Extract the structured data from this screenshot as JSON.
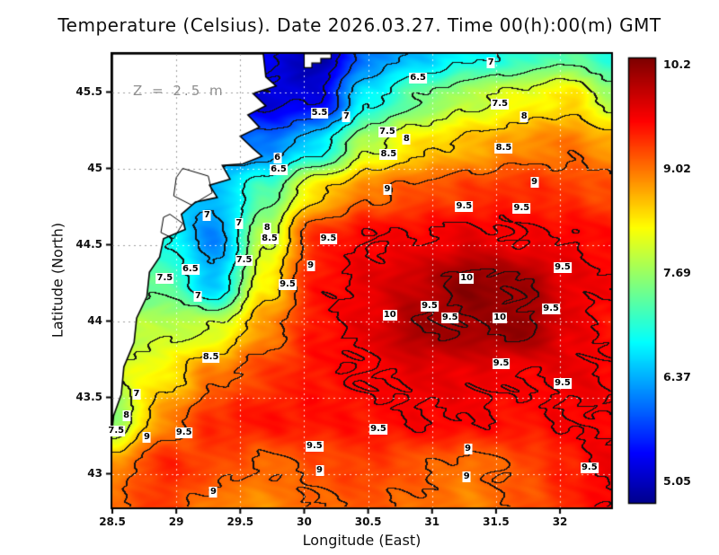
{
  "title": "Temperature (Celsius). Date 2026.03.27. Time 00(h):00(m) GMT",
  "annotation": "Z = 2.5 m",
  "axes": {
    "xlabel": "Longitude (East)",
    "ylabel": "Latitude (North)",
    "x_tick_labels": [
      "28.5",
      "29",
      "29.5",
      "30",
      "30.5",
      "31",
      "31.5",
      "32"
    ],
    "y_tick_labels": [
      "43",
      "43.5",
      "44",
      "44.5",
      "45",
      "45.5"
    ]
  },
  "colorbar": {
    "labels": [
      "10.2",
      "9.02",
      "7.69",
      "6.37",
      "5.05"
    ],
    "min": 5.05,
    "max": 10.2
  },
  "chart_data": {
    "type": "heatmap",
    "title": "Temperature (Celsius). Date 2026.03.27. Time 00(h):00(m) GMT",
    "xlabel": "Longitude (East)",
    "ylabel": "Latitude (North)",
    "units": "Celsius",
    "depth_annotation": "Z = 2.5 m",
    "x_range": [
      28.5,
      32.4
    ],
    "y_range": [
      42.78,
      45.75
    ],
    "value_range": [
      5.05,
      10.2
    ],
    "contour_interval": 0.5,
    "contour_levels": [
      5.5,
      6,
      6.5,
      7,
      7.5,
      8,
      8.5,
      9,
      9.5,
      10
    ],
    "grid_lon": [
      28.5,
      28.9,
      29.3,
      29.7,
      30.1,
      30.5,
      30.9,
      31.3,
      31.7,
      32.1,
      32.4
    ],
    "grid_lat": [
      45.75,
      45.45,
      45.15,
      44.85,
      44.55,
      44.25,
      43.95,
      43.65,
      43.35,
      43.05,
      42.78
    ],
    "temperature": [
      [
        5.8,
        5.8,
        5.8,
        5.6,
        5.1,
        6.2,
        6.6,
        6.9,
        7.1,
        7.4,
        7.0
      ],
      [
        6.0,
        6.0,
        6.0,
        5.4,
        5.5,
        6.9,
        7.5,
        7.9,
        8.2,
        8.4,
        7.8
      ],
      [
        6.2,
        6.2,
        6.2,
        6.2,
        6.8,
        7.9,
        8.4,
        8.6,
        8.8,
        8.9,
        8.7
      ],
      [
        6.5,
        6.5,
        6.6,
        7.3,
        8.4,
        8.9,
        9.1,
        9.2,
        9.3,
        9.2,
        9.1
      ],
      [
        7.0,
        7.0,
        6.3,
        7.9,
        9.3,
        9.5,
        9.5,
        9.6,
        9.5,
        9.5,
        9.4
      ],
      [
        7.4,
        7.4,
        6.6,
        8.3,
        9.4,
        9.6,
        9.8,
        10.15,
        10.0,
        9.6,
        9.5
      ],
      [
        7.8,
        7.9,
        8.0,
        8.8,
        9.4,
        9.6,
        10.0,
        10.0,
        10.1,
        9.6,
        9.4
      ],
      [
        8.0,
        8.3,
        8.9,
        9.2,
        9.4,
        9.5,
        9.6,
        9.6,
        9.5,
        9.6,
        9.5
      ],
      [
        7.6,
        8.8,
        9.3,
        9.4,
        9.4,
        9.4,
        9.5,
        9.5,
        9.4,
        9.5,
        9.5
      ],
      [
        8.8,
        9.3,
        9.15,
        8.95,
        9.1,
        9.2,
        9.05,
        8.9,
        9.1,
        9.35,
        9.6
      ],
      [
        9.0,
        9.2,
        8.85,
        8.8,
        9.0,
        9.05,
        8.95,
        8.85,
        9.05,
        9.3,
        9.5
      ]
    ],
    "contour_labels": [
      {
        "v": "6.5",
        "lon": 30.89,
        "lat": 45.59
      },
      {
        "v": "7",
        "lon": 31.46,
        "lat": 45.69
      },
      {
        "v": "5.5",
        "lon": 30.12,
        "lat": 45.36
      },
      {
        "v": "7",
        "lon": 30.33,
        "lat": 45.34
      },
      {
        "v": "7.5",
        "lon": 31.53,
        "lat": 45.42
      },
      {
        "v": "7.5",
        "lon": 30.65,
        "lat": 45.24
      },
      {
        "v": "8",
        "lon": 30.8,
        "lat": 45.19
      },
      {
        "v": "8",
        "lon": 31.72,
        "lat": 45.34
      },
      {
        "v": "8.5",
        "lon": 30.66,
        "lat": 45.09
      },
      {
        "v": "8.5",
        "lon": 31.56,
        "lat": 45.13
      },
      {
        "v": "6",
        "lon": 29.79,
        "lat": 45.07
      },
      {
        "v": "6.5",
        "lon": 29.8,
        "lat": 44.99
      },
      {
        "v": "9",
        "lon": 30.65,
        "lat": 44.86
      },
      {
        "v": "9",
        "lon": 31.8,
        "lat": 44.91
      },
      {
        "v": "9.5",
        "lon": 31.25,
        "lat": 44.75
      },
      {
        "v": "9.5",
        "lon": 31.7,
        "lat": 44.74
      },
      {
        "v": "7",
        "lon": 29.24,
        "lat": 44.69
      },
      {
        "v": "7",
        "lon": 29.49,
        "lat": 44.64
      },
      {
        "v": "8",
        "lon": 29.71,
        "lat": 44.61
      },
      {
        "v": "8.5",
        "lon": 29.73,
        "lat": 44.54
      },
      {
        "v": "7.5",
        "lon": 29.53,
        "lat": 44.4
      },
      {
        "v": "9.5",
        "lon": 30.19,
        "lat": 44.54
      },
      {
        "v": "6.5",
        "lon": 29.11,
        "lat": 44.34
      },
      {
        "v": "7.5",
        "lon": 28.91,
        "lat": 44.28
      },
      {
        "v": "9",
        "lon": 30.05,
        "lat": 44.36
      },
      {
        "v": "9.5",
        "lon": 29.87,
        "lat": 44.24
      },
      {
        "v": "7",
        "lon": 29.17,
        "lat": 44.16
      },
      {
        "v": "10",
        "lon": 31.27,
        "lat": 44.28
      },
      {
        "v": "9.5",
        "lon": 32.02,
        "lat": 44.35
      },
      {
        "v": "9.5",
        "lon": 30.98,
        "lat": 44.1
      },
      {
        "v": "10",
        "lon": 30.67,
        "lat": 44.04
      },
      {
        "v": "9.5",
        "lon": 31.14,
        "lat": 44.02
      },
      {
        "v": "10",
        "lon": 31.53,
        "lat": 44.02
      },
      {
        "v": "9.5",
        "lon": 31.93,
        "lat": 44.08
      },
      {
        "v": "8.5",
        "lon": 29.27,
        "lat": 43.76
      },
      {
        "v": "9.5",
        "lon": 31.54,
        "lat": 43.72
      },
      {
        "v": "9.5",
        "lon": 32.02,
        "lat": 43.59
      },
      {
        "v": "7",
        "lon": 28.69,
        "lat": 43.52
      },
      {
        "v": "8",
        "lon": 28.61,
        "lat": 43.38
      },
      {
        "v": "7.5",
        "lon": 28.53,
        "lat": 43.28
      },
      {
        "v": "9",
        "lon": 28.77,
        "lat": 43.24
      },
      {
        "v": "9.5",
        "lon": 29.06,
        "lat": 43.27
      },
      {
        "v": "9.5",
        "lon": 30.08,
        "lat": 43.18
      },
      {
        "v": "9.5",
        "lon": 30.58,
        "lat": 43.29
      },
      {
        "v": "9",
        "lon": 30.12,
        "lat": 43.02
      },
      {
        "v": "9",
        "lon": 31.28,
        "lat": 43.16
      },
      {
        "v": "9",
        "lon": 31.27,
        "lat": 42.98
      },
      {
        "v": "9.5",
        "lon": 32.23,
        "lat": 43.04
      },
      {
        "v": "9",
        "lon": 29.29,
        "lat": 42.88
      }
    ],
    "land_polygon": [
      [
        28.5,
        45.75
      ],
      [
        29.68,
        45.75
      ],
      [
        29.7,
        45.6
      ],
      [
        29.78,
        45.54
      ],
      [
        29.6,
        45.49
      ],
      [
        29.7,
        45.41
      ],
      [
        29.56,
        45.35
      ],
      [
        29.65,
        45.27
      ],
      [
        29.5,
        45.21
      ],
      [
        29.6,
        45.13
      ],
      [
        29.67,
        45.08
      ],
      [
        29.52,
        45.03
      ],
      [
        29.36,
        45.02
      ],
      [
        29.42,
        44.93
      ],
      [
        29.26,
        44.89
      ],
      [
        29.32,
        44.81
      ],
      [
        29.15,
        44.78
      ],
      [
        29.04,
        44.7
      ],
      [
        29.07,
        44.6
      ],
      [
        28.9,
        44.54
      ],
      [
        28.87,
        44.42
      ],
      [
        28.79,
        44.32
      ],
      [
        28.77,
        44.16
      ],
      [
        28.69,
        44.02
      ],
      [
        28.67,
        43.86
      ],
      [
        28.59,
        43.7
      ],
      [
        28.57,
        43.52
      ],
      [
        28.51,
        43.38
      ],
      [
        28.5,
        43.3
      ]
    ],
    "land_notch": [
      [
        30.0,
        45.75
      ],
      [
        30.21,
        45.75
      ],
      [
        30.21,
        45.72
      ],
      [
        30.13,
        45.72
      ],
      [
        30.13,
        45.69
      ],
      [
        30.06,
        45.69
      ],
      [
        30.06,
        45.66
      ],
      [
        30.0,
        45.66
      ]
    ],
    "lagoons": [
      [
        [
          29.05,
          45.0
        ],
        [
          29.25,
          44.95
        ],
        [
          29.28,
          44.84
        ],
        [
          29.12,
          44.76
        ],
        [
          28.98,
          44.82
        ],
        [
          29.0,
          44.94
        ]
      ],
      [
        [
          28.95,
          44.7
        ],
        [
          29.05,
          44.64
        ],
        [
          28.98,
          44.54
        ],
        [
          28.88,
          44.58
        ],
        [
          28.9,
          44.68
        ]
      ]
    ],
    "colormap_hint": [
      "#00008f",
      "#0000ff",
      "#00ffff",
      "#ffff00",
      "#ff0000",
      "#800000"
    ]
  }
}
